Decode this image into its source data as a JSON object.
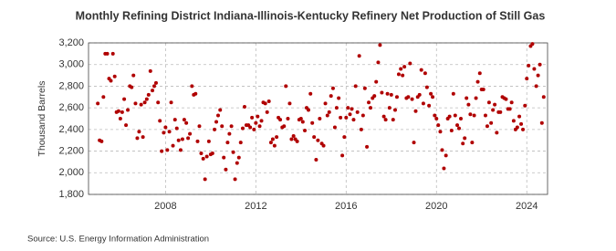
{
  "chart_data": {
    "type": "scatter",
    "title": "Monthly Refining District Indiana-Illinois-Kentucky Refinery Net Production of Still Gas",
    "y_label": "Thousand Barrels",
    "source": "Source: U.S. Energy Information Administration",
    "color": "#b00000",
    "grid": true,
    "xlim": [
      2004.59,
      2024.92
    ],
    "xticks": [
      2008,
      2012,
      2016,
      2020,
      2024
    ],
    "ylim": [
      1800,
      3200
    ],
    "yticks": [
      {
        "value": 1800,
        "label": "1,800"
      },
      {
        "value": 2000,
        "label": "2,000"
      },
      {
        "value": 2200,
        "label": "2,200"
      },
      {
        "value": 2400,
        "label": "2,400"
      },
      {
        "value": 2600,
        "label": "2,600"
      },
      {
        "value": 2800,
        "label": "2,800"
      },
      {
        "value": 3000,
        "label": "3,000"
      },
      {
        "value": 3200,
        "label": "3,200"
      }
    ],
    "x": [
      2005.0,
      2005.08,
      2005.17,
      2005.25,
      2005.33,
      2005.42,
      2005.5,
      2005.58,
      2005.67,
      2005.75,
      2005.83,
      2005.92,
      2006.0,
      2006.08,
      2006.17,
      2006.25,
      2006.33,
      2006.42,
      2006.5,
      2006.58,
      2006.67,
      2006.75,
      2006.83,
      2006.92,
      2007.0,
      2007.08,
      2007.17,
      2007.25,
      2007.33,
      2007.42,
      2007.5,
      2007.58,
      2007.67,
      2007.75,
      2007.83,
      2007.92,
      2008.0,
      2008.08,
      2008.17,
      2008.25,
      2008.33,
      2008.42,
      2008.5,
      2008.58,
      2008.67,
      2008.75,
      2008.83,
      2008.92,
      2009.0,
      2009.08,
      2009.17,
      2009.25,
      2009.33,
      2009.42,
      2009.5,
      2009.58,
      2009.67,
      2009.75,
      2009.83,
      2009.92,
      2010.0,
      2010.08,
      2010.17,
      2010.25,
      2010.33,
      2010.42,
      2010.5,
      2010.58,
      2010.67,
      2010.75,
      2010.83,
      2010.92,
      2011.0,
      2011.08,
      2011.17,
      2011.25,
      2011.33,
      2011.42,
      2011.5,
      2011.58,
      2011.67,
      2011.75,
      2011.83,
      2011.92,
      2012.0,
      2012.08,
      2012.17,
      2012.25,
      2012.33,
      2012.42,
      2012.5,
      2012.58,
      2012.67,
      2012.75,
      2012.83,
      2012.92,
      2013.0,
      2013.08,
      2013.17,
      2013.25,
      2013.33,
      2013.42,
      2013.5,
      2013.58,
      2013.67,
      2013.75,
      2013.83,
      2013.92,
      2014.0,
      2014.08,
      2014.17,
      2014.25,
      2014.33,
      2014.42,
      2014.5,
      2014.58,
      2014.67,
      2014.75,
      2014.83,
      2014.92,
      2015.0,
      2015.08,
      2015.17,
      2015.25,
      2015.33,
      2015.42,
      2015.5,
      2015.58,
      2015.67,
      2015.75,
      2015.83,
      2015.92,
      2016.0,
      2016.08,
      2016.17,
      2016.25,
      2016.33,
      2016.42,
      2016.5,
      2016.58,
      2016.67,
      2016.75,
      2016.83,
      2016.92,
      2017.0,
      2017.08,
      2017.17,
      2017.25,
      2017.33,
      2017.42,
      2017.5,
      2017.58,
      2017.67,
      2017.75,
      2017.83,
      2017.92,
      2018.0,
      2018.08,
      2018.17,
      2018.25,
      2018.33,
      2018.42,
      2018.5,
      2018.58,
      2018.67,
      2018.75,
      2018.83,
      2018.92,
      2019.0,
      2019.08,
      2019.17,
      2019.25,
      2019.33,
      2019.42,
      2019.5,
      2019.58,
      2019.67,
      2019.75,
      2019.83,
      2019.92,
      2020.0,
      2020.08,
      2020.17,
      2020.25,
      2020.33,
      2020.42,
      2020.5,
      2020.58,
      2020.67,
      2020.75,
      2020.83,
      2020.92,
      2021.0,
      2021.08,
      2021.17,
      2021.25,
      2021.33,
      2021.42,
      2021.5,
      2021.58,
      2021.67,
      2021.75,
      2021.83,
      2021.92,
      2022.0,
      2022.08,
      2022.17,
      2022.25,
      2022.33,
      2022.42,
      2022.5,
      2022.58,
      2022.67,
      2022.75,
      2022.83,
      2022.92,
      2023.0,
      2023.08,
      2023.17,
      2023.25,
      2023.33,
      2023.42,
      2023.5,
      2023.58,
      2023.67,
      2023.75,
      2023.83,
      2023.92,
      2024.0,
      2024.08,
      2024.17,
      2024.25,
      2024.33,
      2024.42,
      2024.5,
      2024.58,
      2024.67,
      2024.75
    ],
    "values": [
      2640,
      2300,
      2290,
      2700,
      3100,
      3100,
      2870,
      2850,
      3100,
      2890,
      2560,
      2570,
      2500,
      2560,
      2680,
      2440,
      2580,
      2800,
      2790,
      2900,
      2640,
      2320,
      2380,
      2630,
      2330,
      2650,
      2680,
      2720,
      2940,
      2760,
      2800,
      2830,
      2650,
      2480,
      2200,
      2370,
      2420,
      2210,
      2380,
      2650,
      2250,
      2490,
      2410,
      2300,
      2210,
      2310,
      2490,
      2460,
      2320,
      2360,
      2800,
      2720,
      2730,
      2290,
      2430,
      2180,
      2130,
      1940,
      2150,
      2290,
      2170,
      2180,
      2400,
      2470,
      2530,
      2580,
      2430,
      2140,
      2030,
      2280,
      2360,
      2430,
      2190,
      1940,
      2090,
      2140,
      2280,
      2410,
      2610,
      2440,
      2440,
      2420,
      2510,
      2400,
      2460,
      2520,
      2430,
      2480,
      2650,
      2640,
      2560,
      2660,
      2280,
      2310,
      2250,
      2330,
      2510,
      2490,
      2420,
      2430,
      2800,
      2500,
      2640,
      2310,
      2340,
      2310,
      2290,
      2490,
      2500,
      2470,
      2390,
      2600,
      2580,
      2730,
      2460,
      2330,
      2120,
      2300,
      2500,
      2270,
      2250,
      2640,
      2530,
      2560,
      2710,
      2780,
      2420,
      2600,
      2690,
      2510,
      2160,
      2330,
      2510,
      2600,
      2540,
      2590,
      2490,
      2800,
      2560,
      3080,
      2400,
      2530,
      2780,
      2240,
      2650,
      2600,
      2690,
      2710,
      2840,
      3020,
      3180,
      2740,
      2520,
      2490,
      2730,
      2600,
      2720,
      2490,
      2580,
      2700,
      2910,
      2960,
      2900,
      2980,
      2690,
      2700,
      3010,
      2680,
      2280,
      2570,
      2700,
      2720,
      2950,
      2640,
      2920,
      2790,
      2620,
      2730,
      2700,
      2530,
      2500,
      2440,
      2380,
      2210,
      2040,
      2160,
      2500,
      2520,
      2390,
      2730,
      2530,
      2440,
      2410,
      2500,
      2270,
      2320,
      2690,
      2630,
      2540,
      2280,
      2530,
      2690,
      2840,
      2920,
      2770,
      2770,
      2530,
      2430,
      2650,
      2460,
      2580,
      2630,
      2370,
      2560,
      2560,
      2700,
      2690,
      2680,
      2590,
      2590,
      2650,
      2480,
      2400,
      2420,
      2520,
      2450,
      2400,
      2620,
      2870,
      2990,
      3170,
      3190,
      2960,
      2800,
      2900,
      3000,
      2460,
      2700
    ]
  }
}
